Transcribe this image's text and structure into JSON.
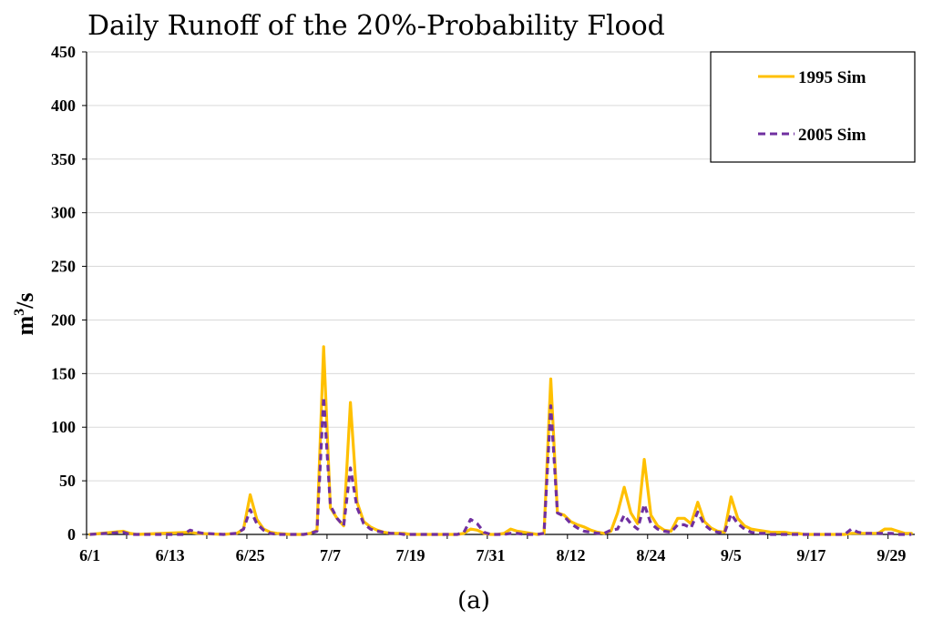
{
  "chart_data": {
    "type": "line",
    "title": "Daily Runoff of the 20%-Probability Flood",
    "caption": "(a)",
    "xlabel": "",
    "ylabel": "m3/s",
    "ylabel_base": "m",
    "ylabel_sup": "3",
    "ylabel_rest": "/s",
    "ylim": [
      0,
      450
    ],
    "yticks": [
      "0",
      "50",
      "100",
      "150",
      "200",
      "250",
      "300",
      "350",
      "400",
      "450"
    ],
    "x_start": "6/1",
    "x_days": 124,
    "xtick_labels": [
      "6/1",
      "6/13",
      "6/25",
      "7/7",
      "7/19",
      "7/31",
      "8/12",
      "8/24",
      "9/5",
      "9/17",
      "9/29"
    ],
    "xtick_days": [
      0,
      12,
      24,
      36,
      48,
      60,
      72,
      84,
      96,
      108,
      120
    ],
    "grid": true,
    "legend_position": "top-right",
    "colors": {
      "sim1995": "#FFC000",
      "sim2005": "#7030A0"
    },
    "series": [
      {
        "name": "1995 Sim",
        "style": "solid",
        "color": "#FFC000",
        "points": [
          [
            0,
            0
          ],
          [
            5,
            3
          ],
          [
            6,
            1
          ],
          [
            7,
            0
          ],
          [
            15,
            2
          ],
          [
            16,
            1
          ],
          [
            20,
            0
          ],
          [
            22,
            1
          ],
          [
            23,
            5
          ],
          [
            24,
            37
          ],
          [
            25,
            14
          ],
          [
            26,
            5
          ],
          [
            27,
            2
          ],
          [
            28,
            1
          ],
          [
            30,
            0
          ],
          [
            32,
            0
          ],
          [
            33,
            1
          ],
          [
            34,
            4
          ],
          [
            35,
            175
          ],
          [
            36,
            25
          ],
          [
            37,
            15
          ],
          [
            38,
            8
          ],
          [
            39,
            123
          ],
          [
            40,
            30
          ],
          [
            41,
            12
          ],
          [
            42,
            7
          ],
          [
            43,
            4
          ],
          [
            44,
            2
          ],
          [
            45,
            1
          ],
          [
            46,
            1
          ],
          [
            47,
            1
          ],
          [
            48,
            0
          ],
          [
            55,
            0
          ],
          [
            56,
            1
          ],
          [
            57,
            5
          ],
          [
            58,
            4
          ],
          [
            59,
            1
          ],
          [
            60,
            0
          ],
          [
            61,
            0
          ],
          [
            62,
            1
          ],
          [
            63,
            5
          ],
          [
            64,
            3
          ],
          [
            65,
            2
          ],
          [
            66,
            1
          ],
          [
            67,
            0
          ],
          [
            68,
            1
          ],
          [
            69,
            145
          ],
          [
            70,
            20
          ],
          [
            71,
            18
          ],
          [
            72,
            12
          ],
          [
            73,
            9
          ],
          [
            74,
            7
          ],
          [
            75,
            4
          ],
          [
            76,
            2
          ],
          [
            77,
            1
          ],
          [
            78,
            3
          ],
          [
            79,
            20
          ],
          [
            80,
            44
          ],
          [
            81,
            20
          ],
          [
            82,
            10
          ],
          [
            83,
            70
          ],
          [
            84,
            18
          ],
          [
            85,
            8
          ],
          [
            86,
            4
          ],
          [
            87,
            3
          ],
          [
            88,
            15
          ],
          [
            89,
            15
          ],
          [
            90,
            10
          ],
          [
            91,
            30
          ],
          [
            92,
            12
          ],
          [
            93,
            6
          ],
          [
            94,
            3
          ],
          [
            95,
            2
          ],
          [
            96,
            35
          ],
          [
            97,
            15
          ],
          [
            98,
            8
          ],
          [
            99,
            5
          ],
          [
            100,
            4
          ],
          [
            101,
            3
          ],
          [
            102,
            2
          ],
          [
            103,
            2
          ],
          [
            104,
            2
          ],
          [
            105,
            1
          ],
          [
            106,
            1
          ],
          [
            107,
            0
          ],
          [
            113,
            0
          ],
          [
            114,
            1
          ],
          [
            115,
            1
          ],
          [
            116,
            1
          ],
          [
            118,
            1
          ],
          [
            119,
            5
          ],
          [
            120,
            5
          ],
          [
            121,
            3
          ],
          [
            122,
            1
          ],
          [
            123,
            1
          ]
        ]
      },
      {
        "name": "2005 Sim",
        "style": "dashed",
        "color": "#7030A0",
        "points": [
          [
            0,
            0
          ],
          [
            5,
            2
          ],
          [
            6,
            0
          ],
          [
            14,
            0
          ],
          [
            15,
            4
          ],
          [
            16,
            2
          ],
          [
            17,
            1
          ],
          [
            20,
            0
          ],
          [
            22,
            1
          ],
          [
            23,
            5
          ],
          [
            24,
            23
          ],
          [
            25,
            10
          ],
          [
            26,
            4
          ],
          [
            27,
            1
          ],
          [
            28,
            0
          ],
          [
            32,
            0
          ],
          [
            33,
            1
          ],
          [
            34,
            3
          ],
          [
            35,
            128
          ],
          [
            36,
            27
          ],
          [
            37,
            15
          ],
          [
            38,
            8
          ],
          [
            39,
            62
          ],
          [
            40,
            25
          ],
          [
            41,
            10
          ],
          [
            42,
            5
          ],
          [
            43,
            3
          ],
          [
            44,
            2
          ],
          [
            45,
            1
          ],
          [
            46,
            1
          ],
          [
            47,
            0
          ],
          [
            55,
            0
          ],
          [
            56,
            2
          ],
          [
            57,
            14
          ],
          [
            58,
            10
          ],
          [
            59,
            2
          ],
          [
            60,
            0
          ],
          [
            61,
            0
          ],
          [
            62,
            0
          ],
          [
            63,
            1
          ],
          [
            64,
            1
          ],
          [
            65,
            0
          ],
          [
            67,
            0
          ],
          [
            68,
            1
          ],
          [
            69,
            120
          ],
          [
            70,
            20
          ],
          [
            71,
            17
          ],
          [
            72,
            10
          ],
          [
            73,
            6
          ],
          [
            74,
            3
          ],
          [
            75,
            2
          ],
          [
            76,
            1
          ],
          [
            77,
            1
          ],
          [
            78,
            4
          ],
          [
            79,
            5
          ],
          [
            80,
            18
          ],
          [
            81,
            10
          ],
          [
            82,
            5
          ],
          [
            83,
            28
          ],
          [
            84,
            10
          ],
          [
            85,
            5
          ],
          [
            86,
            3
          ],
          [
            87,
            2
          ],
          [
            88,
            9
          ],
          [
            89,
            9
          ],
          [
            90,
            6
          ],
          [
            91,
            21
          ],
          [
            92,
            9
          ],
          [
            93,
            4
          ],
          [
            94,
            2
          ],
          [
            95,
            1
          ],
          [
            96,
            19
          ],
          [
            97,
            10
          ],
          [
            98,
            5
          ],
          [
            99,
            2
          ],
          [
            100,
            1
          ],
          [
            101,
            1
          ],
          [
            102,
            0
          ],
          [
            113,
            0
          ],
          [
            114,
            5
          ],
          [
            115,
            2
          ],
          [
            116,
            1
          ],
          [
            117,
            1
          ],
          [
            118,
            1
          ],
          [
            119,
            1
          ],
          [
            120,
            1
          ],
          [
            121,
            0
          ],
          [
            123,
            0
          ]
        ]
      }
    ]
  }
}
